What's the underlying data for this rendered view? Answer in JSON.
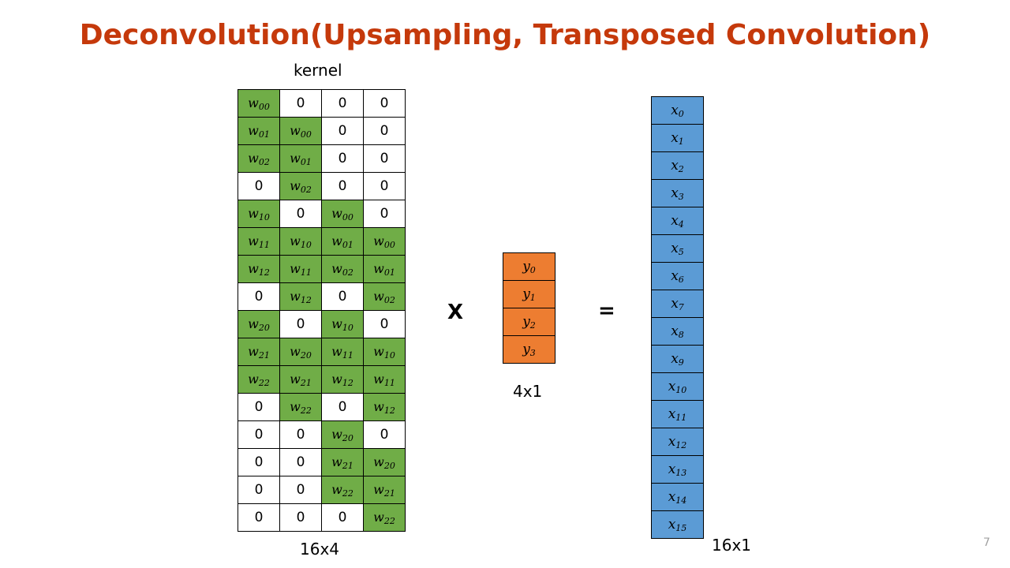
{
  "title": "Deconvolution(Upsampling, Transposed Convolution)",
  "kernel": {
    "label": "kernel",
    "dims": "16x4",
    "rows": [
      [
        "w|00",
        "0",
        "0",
        "0"
      ],
      [
        "w|01",
        "w|00",
        "0",
        "0"
      ],
      [
        "w|02",
        "w|01",
        "0",
        "0"
      ],
      [
        "0",
        "w|02",
        "0",
        "0"
      ],
      [
        "w|10",
        "0",
        "w|00",
        "0"
      ],
      [
        "w|11",
        "w|10",
        "w|01",
        "w|00"
      ],
      [
        "w|12",
        "w|11",
        "w|02",
        "w|01"
      ],
      [
        "0",
        "w|12",
        "0",
        "w|02"
      ],
      [
        "w|20",
        "0",
        "w|10",
        "0"
      ],
      [
        "w|21",
        "w|20",
        "w|11",
        "w|10"
      ],
      [
        "w|22",
        "w|21",
        "w|12",
        "w|11"
      ],
      [
        "0",
        "w|22",
        "0",
        "w|12"
      ],
      [
        "0",
        "0",
        "w|20",
        "0"
      ],
      [
        "0",
        "0",
        "w|21",
        "w|20"
      ],
      [
        "0",
        "0",
        "w|22",
        "w|21"
      ],
      [
        "0",
        "0",
        "0",
        "w|22"
      ]
    ]
  },
  "operators": {
    "multiply": "X",
    "equals": "="
  },
  "input": {
    "dims": "4x1",
    "cells": [
      "y|0",
      "y|1",
      "y|2",
      "y|3"
    ]
  },
  "output": {
    "dims": "16x1",
    "cells": [
      "x|0",
      "x|1",
      "x|2",
      "x|3",
      "x|4",
      "x|5",
      "x|6",
      "x|7",
      "x|8",
      "x|9",
      "x|10",
      "x|11",
      "x|12",
      "x|13",
      "x|14",
      "x|15"
    ]
  },
  "page_number": "7",
  "colors": {
    "title": "#c5390b",
    "kernel_weight_fill": "#70ad47",
    "input_fill": "#ed7d31",
    "output_fill": "#5b9bd5"
  }
}
